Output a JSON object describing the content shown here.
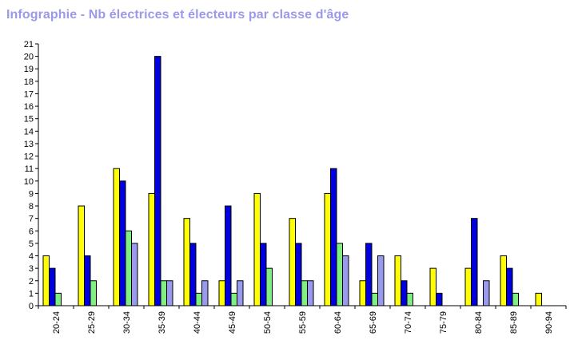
{
  "title": "Infographie - Nb électrices et électeurs par classe d'âge",
  "chart_data": {
    "type": "bar",
    "categories": [
      "20-24",
      "25-29",
      "30-34",
      "35-39",
      "40-44",
      "45-49",
      "50-54",
      "55-59",
      "60-64",
      "65-69",
      "70-74",
      "75-79",
      "80-84",
      "85-89",
      "90-94"
    ],
    "series": [
      {
        "color": "#ffff00",
        "values": [
          4,
          8,
          11,
          9,
          7,
          2,
          9,
          7,
          9,
          2,
          4,
          3,
          3,
          4,
          1
        ]
      },
      {
        "color": "#0000dd",
        "values": [
          3,
          4,
          10,
          20,
          5,
          8,
          5,
          5,
          11,
          5,
          2,
          1,
          7,
          3,
          0
        ]
      },
      {
        "color": "#80ee80",
        "values": [
          1,
          2,
          6,
          2,
          1,
          1,
          3,
          2,
          5,
          1,
          1,
          0,
          0,
          1,
          0
        ]
      },
      {
        "color": "#9999ee",
        "values": [
          0,
          0,
          5,
          2,
          2,
          2,
          0,
          2,
          4,
          4,
          0,
          0,
          2,
          0,
          0
        ]
      }
    ],
    "ylim": [
      0,
      21
    ],
    "yticks": [
      0,
      1,
      2,
      3,
      4,
      5,
      6,
      7,
      8,
      9,
      10,
      11,
      12,
      13,
      14,
      15,
      16,
      17,
      18,
      19,
      20,
      21
    ],
    "grid": false
  }
}
